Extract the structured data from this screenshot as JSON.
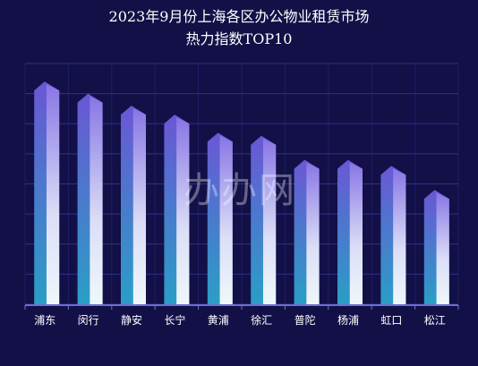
{
  "chart_data": {
    "type": "bar",
    "title": "2023年9月份上海各区办公物业租赁市场",
    "subtitle": "热力指数TOP10",
    "categories": [
      "浦东",
      "闵行",
      "静安",
      "长宁",
      "黄浦",
      "徐汇",
      "普陀",
      "杨浦",
      "虹口",
      "松江"
    ],
    "values": [
      74,
      70,
      66,
      63,
      57,
      56,
      48,
      48,
      46,
      38
    ],
    "ylim": [
      0,
      80
    ],
    "grid": true,
    "xlabel": "",
    "ylabel": ""
  },
  "watermark": "办办网",
  "colors": {
    "background": "#131047",
    "grid": "#2e2f8a",
    "bar_top": "#6a57d4",
    "bar_bottom": "#2a9ec6",
    "bar_highlight": "#ffffff",
    "axis": "#6f6fd0"
  }
}
